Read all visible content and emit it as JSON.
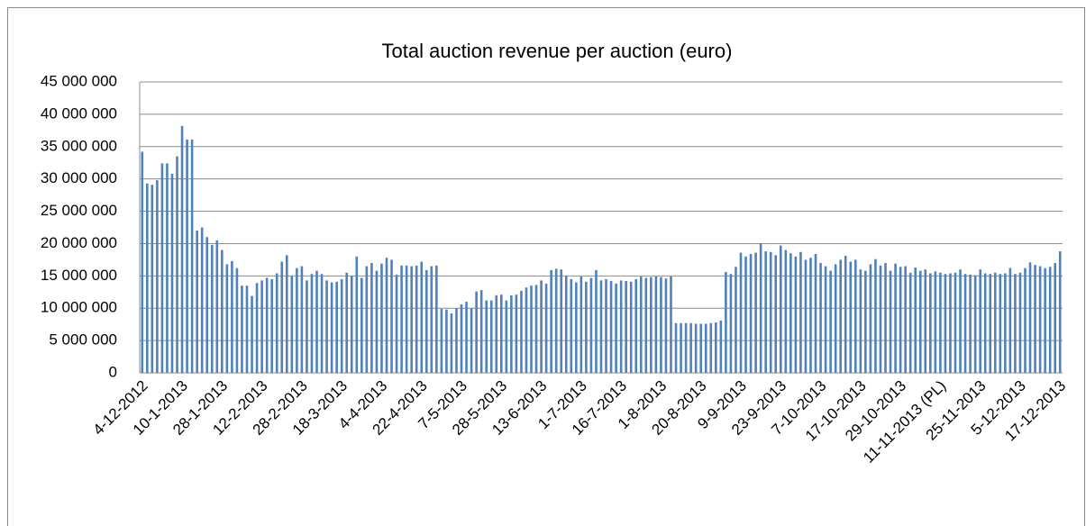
{
  "chart_data": {
    "type": "bar",
    "title": "Total auction revenue per auction (euro)",
    "color": "#4f81bd",
    "grid": true,
    "ylim": [
      0,
      45000000
    ],
    "yticks": [
      0,
      {
        "value": 5000000,
        "label": "5 000 000"
      },
      {
        "value": 10000000,
        "label": "10 000 000"
      },
      {
        "value": 15000000,
        "label": "15 000 000"
      },
      {
        "value": 20000000,
        "label": "20 000 000"
      },
      {
        "value": 25000000,
        "label": "25 000 000"
      },
      {
        "value": 30000000,
        "label": "30 000 000"
      },
      {
        "value": 35000000,
        "label": "35 000 000"
      },
      {
        "value": 40000000,
        "label": "40 000 000"
      },
      {
        "value": 45000000,
        "label": "45 000 000"
      }
    ],
    "categories": [
      "4-12-2012",
      null,
      null,
      null,
      null,
      null,
      null,
      null,
      "10-1-2013",
      null,
      null,
      null,
      null,
      null,
      null,
      null,
      "28-1-2013",
      null,
      null,
      null,
      null,
      null,
      null,
      null,
      "12-2-2013",
      null,
      null,
      null,
      null,
      null,
      null,
      null,
      "28-2-2013",
      null,
      null,
      null,
      null,
      null,
      null,
      null,
      "18-3-2013",
      null,
      null,
      null,
      null,
      null,
      null,
      null,
      "4-4-2013",
      null,
      null,
      null,
      null,
      null,
      null,
      null,
      "22-4-2013",
      null,
      null,
      null,
      null,
      null,
      null,
      null,
      "7-5-2013",
      null,
      null,
      null,
      null,
      null,
      null,
      null,
      "28-5-2013",
      null,
      null,
      null,
      null,
      null,
      null,
      null,
      "13-6-2013",
      null,
      null,
      null,
      null,
      null,
      null,
      null,
      "1-7-2013",
      null,
      null,
      null,
      null,
      null,
      null,
      null,
      "16-7-2013",
      null,
      null,
      null,
      null,
      null,
      null,
      null,
      "1-8-2013",
      null,
      null,
      null,
      null,
      null,
      null,
      null,
      "20-8-2013",
      null,
      null,
      null,
      null,
      null,
      null,
      null,
      "9-9-2013",
      null,
      null,
      null,
      null,
      null,
      null,
      null,
      "23-9-2013",
      null,
      null,
      null,
      null,
      null,
      null,
      null,
      "7-10-2013",
      null,
      null,
      null,
      null,
      null,
      null,
      null,
      "17-10-2013",
      null,
      null,
      null,
      null,
      null,
      null,
      null,
      "29-10-2013",
      null,
      null,
      null,
      null,
      null,
      null,
      null,
      "11-11-2013 (PL)",
      null,
      null,
      null,
      null,
      null,
      null,
      null,
      "25-11-2013",
      null,
      null,
      null,
      null,
      null,
      null,
      null,
      "5-12-2013",
      null,
      null,
      null,
      null,
      null,
      null,
      null,
      "17-12-2013"
    ],
    "values": [
      34200000,
      29300000,
      29100000,
      29800000,
      32400000,
      32400000,
      30800000,
      33500000,
      38200000,
      36100000,
      36100000,
      22000000,
      22500000,
      21000000,
      19800000,
      20500000,
      19000000,
      16800000,
      17300000,
      16200000,
      13500000,
      13500000,
      11900000,
      13900000,
      14300000,
      14700000,
      14500000,
      15400000,
      17200000,
      18200000,
      15000000,
      16200000,
      16500000,
      14300000,
      15300000,
      15800000,
      15300000,
      14300000,
      14000000,
      14100000,
      14500000,
      15500000,
      15000000,
      18000000,
      14700000,
      16500000,
      17000000,
      15800000,
      16900000,
      17800000,
      17500000,
      15200000,
      16600000,
      16600000,
      16500000,
      16600000,
      17200000,
      15900000,
      16500000,
      16600000,
      9900000,
      9800000,
      9200000,
      10000000,
      10600000,
      11000000,
      10000000,
      12600000,
      12800000,
      11200000,
      11200000,
      12000000,
      12100000,
      11200000,
      12000000,
      12100000,
      12700000,
      13200000,
      13500000,
      13600000,
      14300000,
      13800000,
      15900000,
      16100000,
      16000000,
      15000000,
      14500000,
      14000000,
      14900000,
      14100000,
      14700000,
      15900000,
      14300000,
      14500000,
      14200000,
      13800000,
      14300000,
      14200000,
      14100000,
      14500000,
      14900000,
      14700000,
      14800000,
      14900000,
      14800000,
      14600000,
      14900000,
      7700000,
      7700000,
      7700000,
      7700000,
      7600000,
      7600000,
      7600000,
      7700000,
      7800000,
      8100000,
      15600000,
      15300000,
      16400000,
      18600000,
      18000000,
      18400000,
      18600000,
      20000000,
      18800000,
      18700000,
      18200000,
      19700000,
      19000000,
      18500000,
      18000000,
      18700000,
      17500000,
      17800000,
      18400000,
      17000000,
      16500000,
      15800000,
      16800000,
      17500000,
      18100000,
      17200000,
      17500000,
      16000000,
      15800000,
      16800000,
      17600000,
      16600000,
      17000000,
      15800000,
      16900000,
      16400000,
      16500000,
      15500000,
      16300000,
      15800000,
      16000000,
      15400000,
      15700000,
      15500000,
      15300000,
      15400000,
      15500000,
      16000000,
      15300000,
      15200000,
      15100000,
      16000000,
      15400000,
      15300000,
      15500000,
      15300000,
      15400000,
      16200000,
      15300000,
      15500000,
      16200000,
      17100000,
      16700000,
      16500000,
      16200000,
      16400000,
      17000000,
      18800000
    ]
  }
}
